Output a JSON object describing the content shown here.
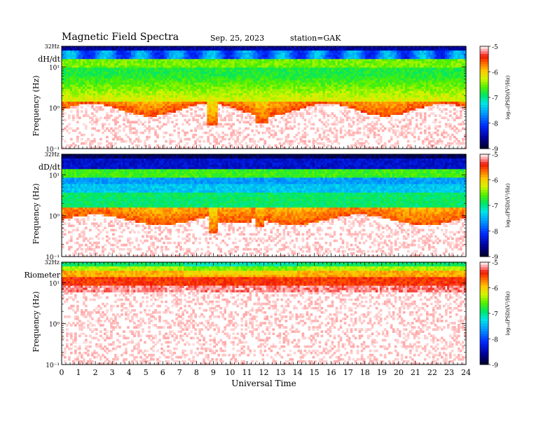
{
  "header": {
    "title": "Magnetic  Field  Spectra",
    "date": "Sep. 25, 2023",
    "station": "station=GAK"
  },
  "colors": {
    "spectrogram": "rainbow (white = low, blue/black = very low, green, yellow, red)",
    "background": "#ffffff"
  },
  "chart_data": [
    {
      "type": "heatmap",
      "panel_label": "dH/dt",
      "ylabel": "Frequency  (Hz)",
      "xlabel": "",
      "ylim": [
        0.1,
        32
      ],
      "yscale": "log",
      "top_label": "32Hz",
      "y_ticks": [
        "10⁻¹",
        "10⁰",
        "10¹"
      ],
      "colorbar": {
        "label": "log₁₀(PSD)(V²/Hz)",
        "ticks": [
          "-5",
          "-6",
          "-7",
          "-8",
          "-9"
        ],
        "range": [
          -9,
          -5
        ]
      },
      "x_ticks": [
        "0",
        "1",
        "2",
        "3",
        "4",
        "5",
        "6",
        "7",
        "8",
        "9",
        "10",
        "11",
        "12",
        "13",
        "14",
        "15",
        "16",
        "17",
        "18",
        "19",
        "20",
        "21",
        "22",
        "23",
        "24"
      ]
    },
    {
      "type": "heatmap",
      "panel_label": "dD/dt",
      "ylabel": "Frequency  (Hz)",
      "xlabel": "",
      "ylim": [
        0.1,
        32
      ],
      "yscale": "log",
      "top_label": "32Hz",
      "y_ticks": [
        "10⁻¹",
        "10⁰",
        "10¹"
      ],
      "colorbar": {
        "label": "log₁₀(PSD)(V²/Hz)",
        "ticks": [
          "-5",
          "-6",
          "-7",
          "-8",
          "-9"
        ],
        "range": [
          -9,
          -5
        ]
      },
      "x_ticks": [
        "0",
        "1",
        "2",
        "3",
        "4",
        "5",
        "6",
        "7",
        "8",
        "9",
        "10",
        "11",
        "12",
        "13",
        "14",
        "15",
        "16",
        "17",
        "18",
        "19",
        "20",
        "21",
        "22",
        "23",
        "24"
      ]
    },
    {
      "type": "heatmap",
      "panel_label": "Riometer",
      "ylabel": "Frequency  (Hz)",
      "xlabel": "Universal Time",
      "ylim": [
        0.1,
        32
      ],
      "yscale": "log",
      "top_label": "32Hz",
      "y_ticks": [
        "10⁻¹",
        "10⁰",
        "10¹"
      ],
      "colorbar": {
        "label": "log₁₀(PSD)(V²/Hz)",
        "ticks": [
          "-5",
          "-6",
          "-7",
          "-8",
          "-9"
        ],
        "range": [
          -9,
          -5
        ]
      },
      "x_ticks": [
        "0",
        "1",
        "2",
        "3",
        "4",
        "5",
        "6",
        "7",
        "8",
        "9",
        "10",
        "11",
        "12",
        "13",
        "14",
        "15",
        "16",
        "17",
        "18",
        "19",
        "20",
        "21",
        "22",
        "23",
        "24"
      ],
      "xlim": [
        0,
        24
      ]
    }
  ]
}
